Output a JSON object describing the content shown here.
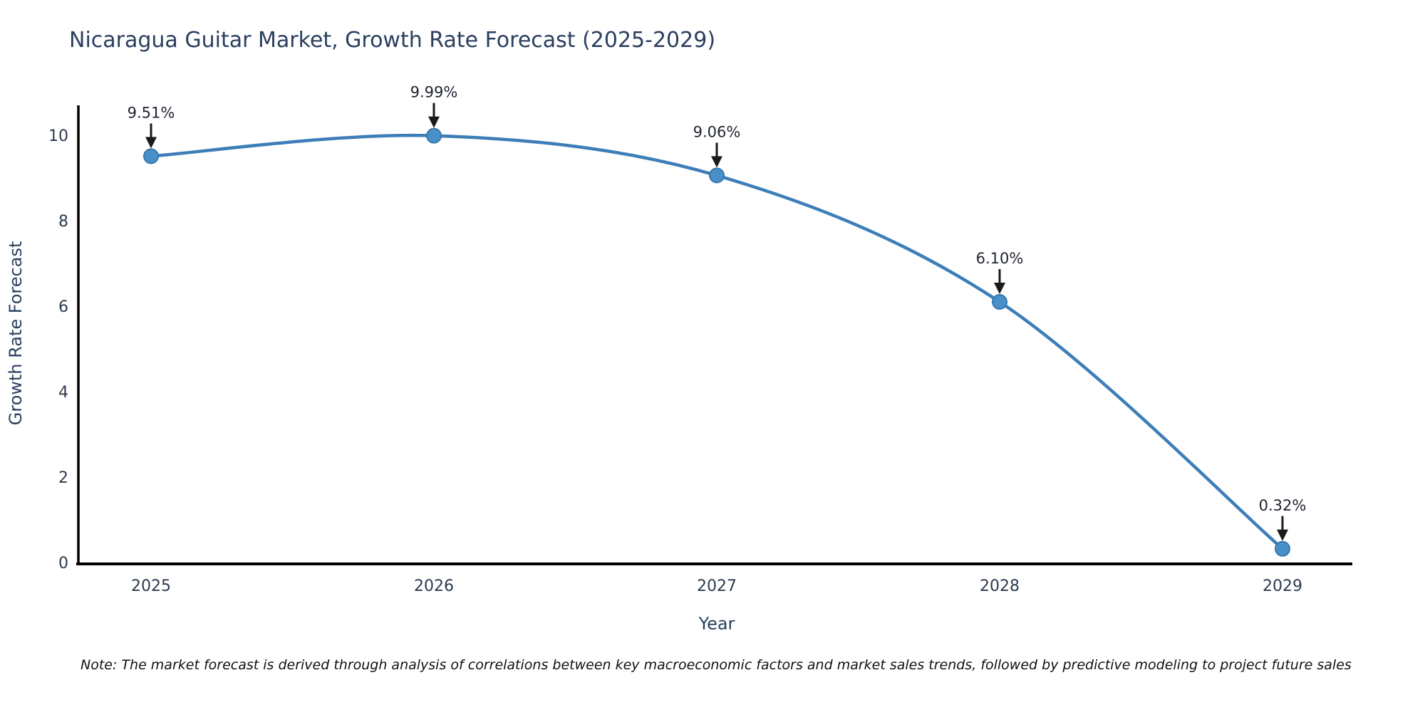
{
  "chart_data": {
    "type": "line",
    "title": "Nicaragua Guitar Market, Growth Rate Forecast (2025-2029)",
    "xlabel": "Year",
    "ylabel": "Growth Rate Forecast",
    "categories": [
      "2025",
      "2026",
      "2027",
      "2028",
      "2029"
    ],
    "values": [
      9.51,
      9.99,
      9.06,
      6.1,
      0.32
    ],
    "point_labels": [
      "9.51%",
      "9.99%",
      "9.06%",
      "6.10%",
      "0.32%"
    ],
    "yticks": [
      0,
      2,
      4,
      6,
      8,
      10
    ],
    "ylim": [
      0,
      10.7
    ],
    "grid": false,
    "legend_position": "none",
    "line_shape": "spline",
    "colors": {
      "line": "#3d7eb8",
      "marker_fill": "#4a90c8",
      "marker_stroke": "#3676ad",
      "axis": "#000000",
      "title_text": "#2a3f5f",
      "tick_text": "#2e3b50",
      "annotation": "#1a1a1a"
    },
    "note": "Note: The market forecast is derived through analysis of correlations between key macroeconomic factors and market sales trends, followed by predictive modeling to project future sales"
  }
}
